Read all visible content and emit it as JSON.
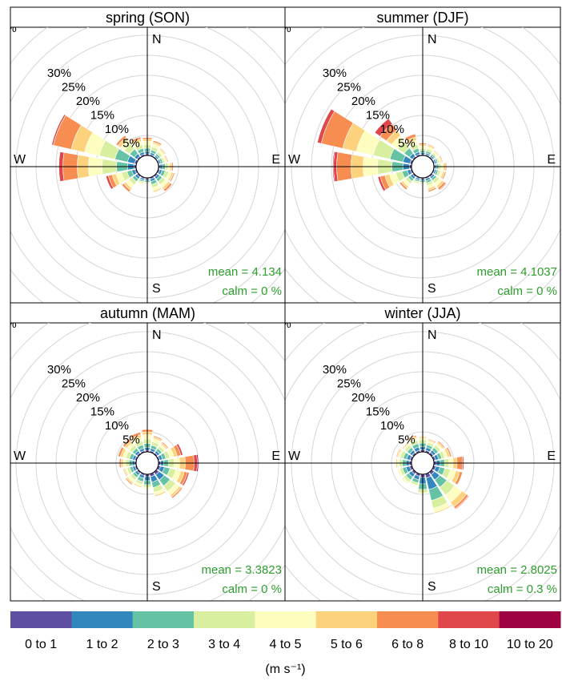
{
  "chart_data": {
    "type": "wind-rose",
    "ring_step_percent": 5,
    "ring_count": 8,
    "ring_labels": [
      "5%",
      "10%",
      "15%",
      "20%",
      "25%",
      "30%"
    ],
    "unit_symbol": "%",
    "directions": [
      "N",
      "NNE",
      "NE",
      "ENE",
      "E",
      "ESE",
      "SE",
      "SSE",
      "S",
      "SSW",
      "SW",
      "WSW",
      "W",
      "WNW",
      "NW",
      "NNW"
    ],
    "compass_labels": {
      "n": "N",
      "e": "E",
      "s": "S",
      "w": "W"
    },
    "speed_bins": [
      {
        "label": "0 to 1",
        "color": "#5e4fa2"
      },
      {
        "label": "1 to 2",
        "color": "#3288bd"
      },
      {
        "label": "2 to 3",
        "color": "#66c2a5"
      },
      {
        "label": "3 to 4",
        "color": "#d8efa0"
      },
      {
        "label": "4 to 5",
        "color": "#fdfdc0"
      },
      {
        "label": "5 to 6",
        "color": "#fdd27d"
      },
      {
        "label": "6 to 8",
        "color": "#f88d52"
      },
      {
        "label": "8 to 10",
        "color": "#e0474a"
      },
      {
        "label": "10 to 20",
        "color": "#9e0142"
      }
    ],
    "legend_unit": "(m s⁻¹)",
    "panels": [
      {
        "title": "spring (SON)",
        "mean_label": "mean  =  4.134",
        "calm_label": "calm  =  0 %",
        "freq": [
          [
            0.4,
            0.6,
            0.8,
            0.9,
            0.9,
            0.5,
            0.4,
            0,
            0
          ],
          [
            0.3,
            0.5,
            0.7,
            0.8,
            0.8,
            0.4,
            0.4,
            0,
            0
          ],
          [
            0.3,
            0.4,
            0.5,
            0.6,
            0.6,
            0.3,
            0.2,
            0,
            0
          ],
          [
            0.3,
            0.4,
            0.5,
            0.5,
            0.4,
            0.3,
            0.2,
            0,
            0
          ],
          [
            0.4,
            0.6,
            0.7,
            0.7,
            0.5,
            0.5,
            0.3,
            0,
            0
          ],
          [
            0.4,
            0.6,
            0.8,
            0.9,
            0.7,
            0.5,
            0.3,
            0,
            0
          ],
          [
            0.4,
            0.6,
            0.8,
            0.9,
            0.9,
            0.6,
            0.6,
            0,
            0
          ],
          [
            0.4,
            0.6,
            0.8,
            0.8,
            0.8,
            0.4,
            0,
            0,
            0
          ],
          [
            0.3,
            0.4,
            0.4,
            0.3,
            0.2,
            0,
            0,
            0,
            0
          ],
          [
            0.3,
            0.4,
            0.4,
            0.4,
            0.4,
            0,
            0,
            0,
            0
          ],
          [
            0.4,
            0.6,
            0.8,
            1.0,
            1.0,
            0.6,
            0.6,
            0,
            0
          ],
          [
            0.4,
            0.8,
            1.2,
            1.4,
            1.4,
            1.0,
            1.0,
            0.6,
            0
          ],
          [
            0.5,
            1.6,
            2.8,
            3.6,
            3.4,
            2.8,
            3.6,
            1.0,
            0
          ],
          [
            0.5,
            1.8,
            3.2,
            4.0,
            3.8,
            3.4,
            4.6,
            0.4,
            0
          ],
          [
            0.4,
            0.8,
            1.4,
            1.6,
            1.2,
            0.8,
            0.6,
            0,
            0
          ],
          [
            0.4,
            0.6,
            0.9,
            1.0,
            0.8,
            0.6,
            0.5,
            0,
            0
          ]
        ]
      },
      {
        "title": "summer (DJF)",
        "mean_label": "mean  =  4.1037",
        "calm_label": "calm  =  0 %",
        "freq": [
          [
            0.3,
            0.4,
            0.5,
            0.6,
            0.6,
            0.4,
            0.3,
            0,
            0
          ],
          [
            0.3,
            0.4,
            0.5,
            0.6,
            0.6,
            0.4,
            0.2,
            0,
            0
          ],
          [
            0.3,
            0.4,
            0.4,
            0.4,
            0.4,
            0.3,
            0,
            0,
            0
          ],
          [
            0.3,
            0.4,
            0.4,
            0.4,
            0.4,
            0.3,
            0.2,
            0,
            0
          ],
          [
            0.3,
            0.4,
            0.5,
            0.6,
            0.6,
            0.5,
            0.3,
            0,
            0
          ],
          [
            0.3,
            0.4,
            0.5,
            0.6,
            0.6,
            0.5,
            0.3,
            0,
            0
          ],
          [
            0.4,
            0.5,
            0.6,
            0.8,
            0.8,
            0.6,
            0.6,
            0.2,
            0
          ],
          [
            0.3,
            0.5,
            0.6,
            0.7,
            0.7,
            0.5,
            0.4,
            0,
            0
          ],
          [
            0.3,
            0.4,
            0.4,
            0.3,
            0.2,
            0,
            0,
            0,
            0
          ],
          [
            0.3,
            0.4,
            0.4,
            0.4,
            0.3,
            0,
            0,
            0,
            0
          ],
          [
            0.4,
            0.6,
            0.7,
            0.8,
            0.8,
            0.5,
            0.5,
            0,
            0
          ],
          [
            0.4,
            0.8,
            1.3,
            1.6,
            1.6,
            1.2,
            1.2,
            0.6,
            0
          ],
          [
            0.5,
            1.6,
            2.8,
            3.6,
            3.6,
            3.0,
            3.6,
            0.8,
            0.2
          ],
          [
            0.5,
            1.8,
            3.3,
            4.3,
            4.3,
            3.5,
            5.5,
            1.0,
            0
          ],
          [
            0.4,
            0.9,
            1.6,
            2.0,
            1.8,
            1.6,
            2.0,
            1.6,
            0
          ],
          [
            0.4,
            0.6,
            0.9,
            1.1,
            1.0,
            0.8,
            0.8,
            0,
            0
          ]
        ]
      },
      {
        "title": "autumn (MAM)",
        "mean_label": "mean  =  3.3823",
        "calm_label": "calm  =  0 %",
        "freq": [
          [
            0.4,
            0.7,
            1.0,
            1.1,
            1.1,
            0.7,
            0.6,
            0,
            0
          ],
          [
            0.4,
            0.6,
            0.8,
            0.9,
            0.8,
            0.4,
            0.3,
            0,
            0
          ],
          [
            0.4,
            0.6,
            0.7,
            0.7,
            0.6,
            0.4,
            0.3,
            0,
            0
          ],
          [
            0.4,
            0.7,
            0.9,
            1.0,
            1.0,
            0.9,
            0.9,
            0.5,
            0
          ],
          [
            0.5,
            0.8,
            1.2,
            1.4,
            1.4,
            1.4,
            2.2,
            0.8,
            0.3
          ],
          [
            0.6,
            1.0,
            1.4,
            1.5,
            1.3,
            0.9,
            0.8,
            0.4,
            0
          ],
          [
            0.8,
            1.6,
            1.8,
            1.7,
            1.1,
            0.6,
            0.4,
            0,
            0
          ],
          [
            0.7,
            1.4,
            1.4,
            1.2,
            0.7,
            0.4,
            0,
            0,
            0
          ],
          [
            0.6,
            1.0,
            1.0,
            0.6,
            0.4,
            0,
            0,
            0,
            0
          ],
          [
            0.4,
            0.7,
            0.9,
            0.7,
            0.5,
            0.3,
            0,
            0,
            0
          ],
          [
            0.4,
            0.6,
            0.7,
            0.8,
            0.7,
            0.4,
            0.3,
            0,
            0
          ],
          [
            0.4,
            0.6,
            0.7,
            0.7,
            0.5,
            0.3,
            0.2,
            0,
            0
          ],
          [
            0.4,
            0.6,
            0.8,
            0.8,
            0.7,
            0.5,
            0.4,
            0,
            0
          ],
          [
            0.4,
            0.6,
            0.8,
            0.9,
            0.8,
            0.6,
            0.6,
            0,
            0
          ],
          [
            0.4,
            0.6,
            0.8,
            0.9,
            0.8,
            0.6,
            0.6,
            0,
            0
          ],
          [
            0.4,
            0.6,
            0.9,
            1.0,
            0.9,
            0.7,
            0.6,
            0,
            0
          ]
        ]
      },
      {
        "title": "winter (JJA)",
        "mean_label": "mean  =  2.8025",
        "calm_label": "calm  =  0.3 %",
        "freq": [
          [
            0.5,
            0.8,
            0.9,
            0.8,
            0.5,
            0.3,
            0,
            0,
            0
          ],
          [
            0.5,
            0.7,
            0.7,
            0.6,
            0.4,
            0.3,
            0.2,
            0,
            0
          ],
          [
            0.5,
            0.7,
            0.8,
            0.7,
            0.6,
            0.4,
            0.3,
            0,
            0
          ],
          [
            0.5,
            0.8,
            0.8,
            0.8,
            0.7,
            0.6,
            0.4,
            0,
            0
          ],
          [
            0.6,
            1.0,
            1.1,
            1.1,
            1.0,
            1.0,
            1.4,
            0.3,
            0
          ],
          [
            0.6,
            1.0,
            1.3,
            1.4,
            1.4,
            1.0,
            0.7,
            0,
            0
          ],
          [
            0.8,
            1.6,
            2.2,
            2.4,
            2.2,
            1.4,
            0.6,
            0.2,
            0
          ],
          [
            1.0,
            3.0,
            2.8,
            2.0,
            1.0,
            0.3,
            0,
            0,
            0
          ],
          [
            0.8,
            1.6,
            1.4,
            0.8,
            0.3,
            0,
            0,
            0,
            0
          ],
          [
            0.6,
            0.9,
            0.8,
            0.6,
            0.3,
            0,
            0,
            0,
            0
          ],
          [
            0.6,
            0.9,
            0.9,
            0.7,
            0.4,
            0.2,
            0,
            0,
            0
          ],
          [
            0.6,
            0.9,
            0.9,
            0.7,
            0.4,
            0.2,
            0,
            0,
            0
          ],
          [
            0.6,
            0.8,
            0.9,
            0.8,
            0.5,
            0.3,
            0,
            0,
            0
          ],
          [
            0.5,
            0.8,
            0.9,
            0.8,
            0.5,
            0.3,
            0.2,
            0,
            0
          ],
          [
            0.5,
            0.7,
            0.8,
            0.7,
            0.5,
            0.3,
            0,
            0,
            0
          ],
          [
            0.5,
            0.8,
            0.9,
            0.8,
            0.6,
            0.4,
            0.3,
            0,
            0
          ]
        ]
      }
    ]
  }
}
